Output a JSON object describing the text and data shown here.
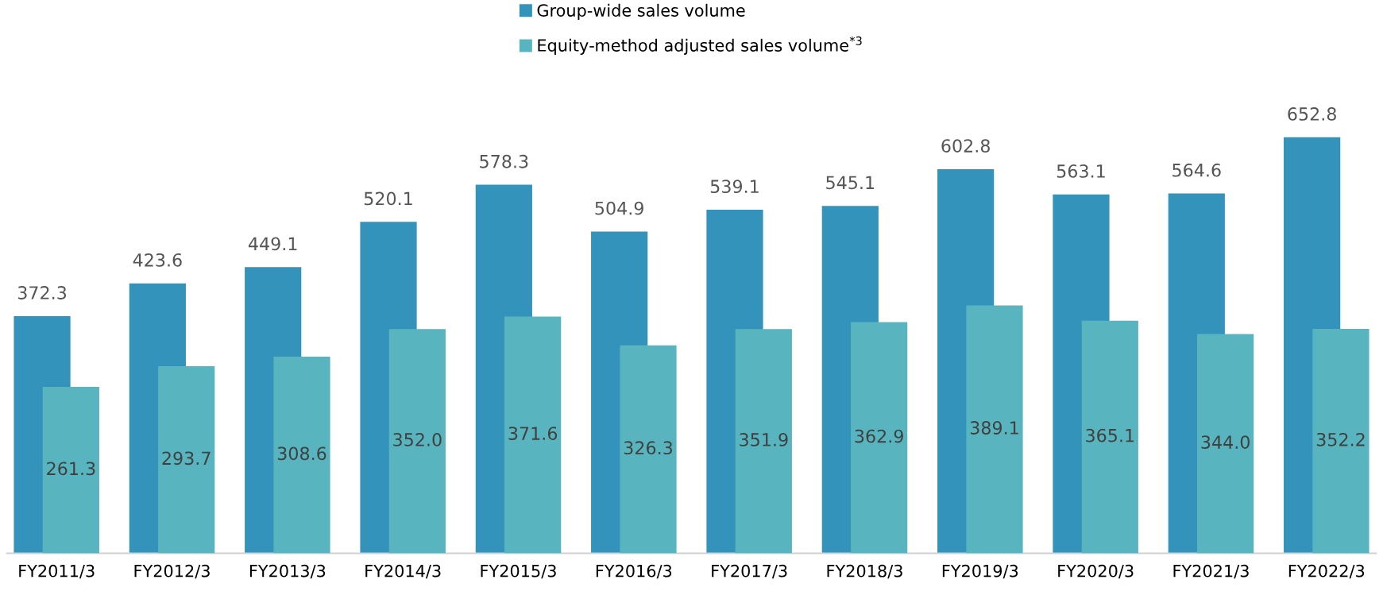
{
  "chart_data": {
    "type": "bar",
    "categories": [
      "FY2011/3",
      "FY2012/3",
      "FY2013/3",
      "FY2014/3",
      "FY2015/3",
      "FY2016/3",
      "FY2017/3",
      "FY2018/3",
      "FY2019/3",
      "FY2020/3",
      "FY2021/3",
      "FY2022/3"
    ],
    "series": [
      {
        "name": "Group-wide sales volume",
        "color": "#3493ba",
        "values": [
          372.3,
          423.6,
          449.1,
          520.1,
          578.3,
          504.9,
          539.1,
          545.1,
          602.8,
          563.1,
          564.6,
          652.8
        ],
        "value_labels": [
          "372.3",
          "423.6",
          "449.1",
          "520.1",
          "578.3",
          "504.9",
          "539.1",
          "545.1",
          "602.8",
          "563.1",
          "564.6",
          "652.8"
        ]
      },
      {
        "name": "Equity-method adjusted sales volume$^{*3}$",
        "color": "#58b5bf",
        "values": [
          261.3,
          293.7,
          308.6,
          352.0,
          371.6,
          326.3,
          351.9,
          362.9,
          389.1,
          365.1,
          344.0,
          352.2
        ],
        "value_labels": [
          "261.3",
          "293.7",
          "308.6",
          "352.0",
          "371.6",
          "326.3",
          "351.9",
          "362.9",
          "389.1",
          "365.1",
          "344.0",
          "352.2"
        ]
      }
    ],
    "legend": "top",
    "grid": false,
    "tick_labels": "x"
  }
}
